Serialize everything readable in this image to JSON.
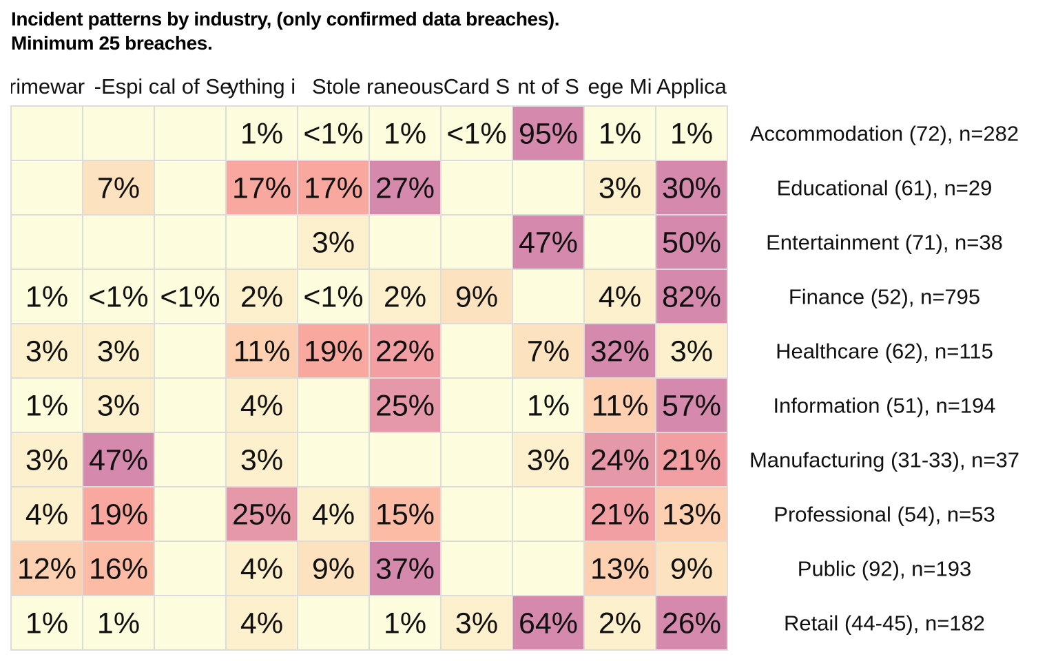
{
  "chart_data": {
    "type": "heatmap",
    "title": "Incident patterns by industry, (only confirmed data breaches).",
    "subtitle": "Minimum 25 breaches.",
    "columns": [
      "rimewar",
      "-Espi",
      "cal of Se",
      "ything i",
      " Stole",
      "raneous",
      "Card S",
      "nt of S",
      "ege Mi",
      "Applica"
    ],
    "rows": [
      "Accommodation (72), n=282",
      "Educational (61), n=29",
      "Entertainment (71), n=38",
      "Finance (52), n=795",
      "Healthcare (62), n=115",
      "Information (51), n=194",
      "Manufacturing (31-33), n=37",
      "Professional (54), n=53",
      "Public (92), n=193",
      "Retail (44-45), n=182"
    ],
    "values": [
      [
        "",
        "",
        "",
        "1%",
        "<1%",
        "1%",
        "<1%",
        "95%",
        "1%",
        "1%"
      ],
      [
        "",
        "7%",
        "",
        "17%",
        "17%",
        "27%",
        "",
        "",
        "3%",
        "30%"
      ],
      [
        "",
        "",
        "",
        "",
        "3%",
        "",
        "",
        "47%",
        "",
        "50%"
      ],
      [
        "1%",
        "<1%",
        "<1%",
        "2%",
        "<1%",
        "2%",
        "9%",
        "",
        "4%",
        "82%"
      ],
      [
        "3%",
        "3%",
        "",
        "11%",
        "19%",
        "22%",
        "",
        "7%",
        "32%",
        "3%"
      ],
      [
        "1%",
        "3%",
        "",
        "4%",
        "",
        "25%",
        "",
        "1%",
        "11%",
        "57%"
      ],
      [
        "3%",
        "47%",
        "",
        "3%",
        "",
        "",
        "",
        "3%",
        "24%",
        "21%"
      ],
      [
        "4%",
        "19%",
        "",
        "25%",
        "4%",
        "15%",
        "",
        "",
        "21%",
        "13%"
      ],
      [
        "12%",
        "16%",
        "",
        "4%",
        "9%",
        "37%",
        "",
        "",
        "13%",
        "9%"
      ],
      [
        "1%",
        "1%",
        "",
        "4%",
        "",
        "1%",
        "3%",
        "64%",
        "2%",
        "26%"
      ]
    ],
    "colors": {
      "empty": "#fdfcdc",
      "scale": [
        "#fdfcdc",
        "#fdf0cc",
        "#fde2c0",
        "#fcd0b0",
        "#fbbba4",
        "#f8a89e",
        "#f19fa2",
        "#e598a8",
        "#d58aad"
      ],
      "grid": "#dcdcdc",
      "text": "#111111"
    }
  }
}
